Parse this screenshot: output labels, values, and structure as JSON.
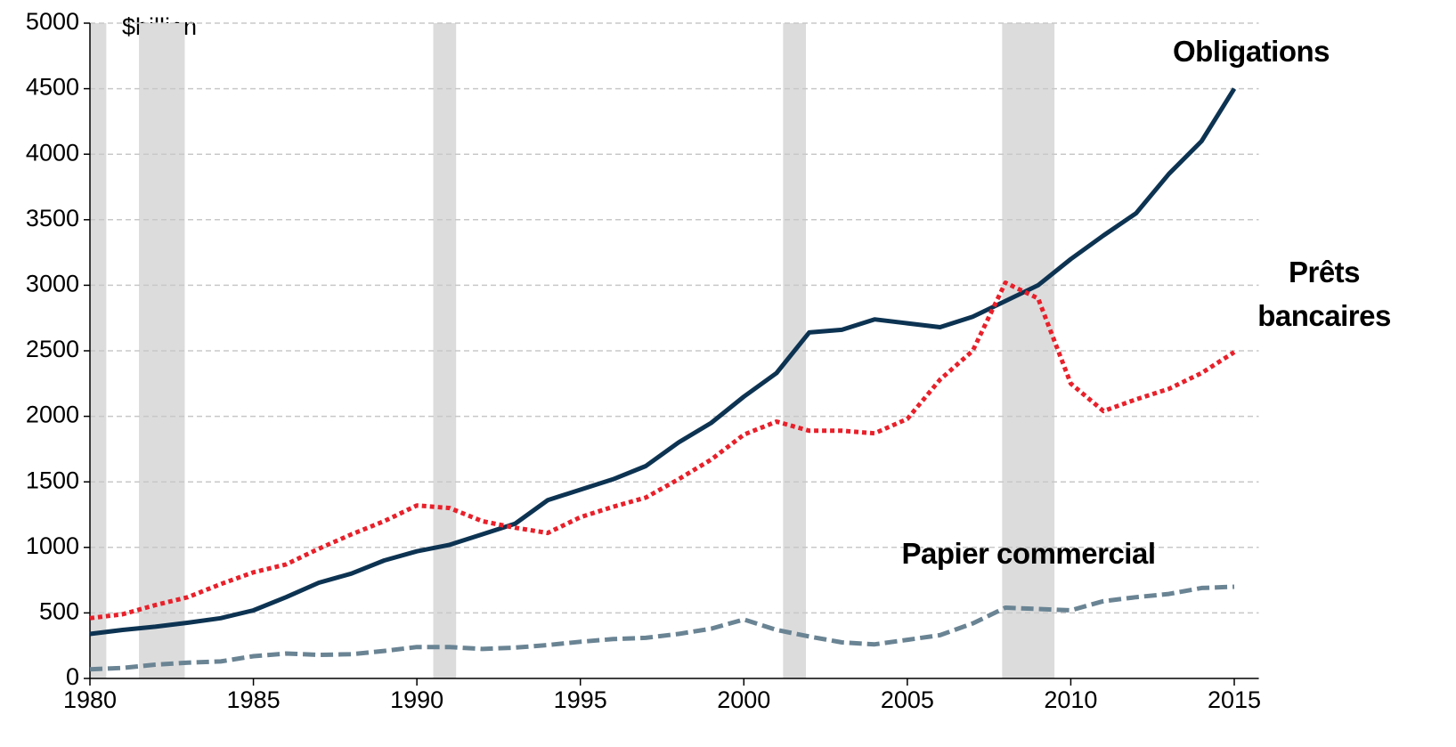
{
  "chart_data": {
    "type": "line",
    "unit_label": "$billion",
    "x": [
      1980,
      1981,
      1982,
      1983,
      1984,
      1985,
      1986,
      1987,
      1988,
      1989,
      1990,
      1991,
      1992,
      1993,
      1994,
      1995,
      1996,
      1997,
      1998,
      1999,
      2000,
      2001,
      2002,
      2003,
      2004,
      2005,
      2006,
      2007,
      2008,
      2009,
      2010,
      2011,
      2012,
      2013,
      2014,
      2015
    ],
    "series": [
      {
        "name": "Obligations",
        "color": "#0d3352",
        "style": "solid",
        "values": [
          340,
          370,
          395,
          425,
          460,
          520,
          620,
          730,
          800,
          900,
          970,
          1020,
          1100,
          1180,
          1360,
          1440,
          1520,
          1620,
          1800,
          1950,
          2150,
          2330,
          2640,
          2660,
          2740,
          2710,
          2680,
          2760,
          2880,
          3000,
          3200,
          3380,
          3550,
          3850,
          4100,
          4500
        ]
      },
      {
        "name": "Prêts bancaires",
        "color": "#e8202a",
        "style": "dotted",
        "values": [
          460,
          490,
          560,
          620,
          720,
          810,
          870,
          990,
          1100,
          1200,
          1320,
          1300,
          1200,
          1150,
          1110,
          1230,
          1310,
          1380,
          1520,
          1670,
          1860,
          1960,
          1890,
          1890,
          1870,
          1980,
          2280,
          2500,
          3020,
          2900,
          2250,
          2040,
          2130,
          2210,
          2330,
          2490
        ]
      },
      {
        "name": "Papier commercial",
        "color": "#6a8494",
        "style": "dashed",
        "values": [
          70,
          80,
          105,
          120,
          130,
          170,
          190,
          180,
          185,
          210,
          240,
          240,
          225,
          235,
          255,
          280,
          300,
          310,
          340,
          380,
          450,
          370,
          320,
          275,
          260,
          295,
          330,
          420,
          540,
          530,
          520,
          590,
          620,
          645,
          690,
          700
        ]
      }
    ],
    "recessions": [
      [
        1980.0,
        1980.5
      ],
      [
        1981.5,
        1982.9
      ],
      [
        1990.5,
        1991.2
      ],
      [
        2001.2,
        2001.9
      ],
      [
        2007.9,
        2009.5
      ]
    ],
    "xlim": [
      1980,
      2015.75
    ],
    "xticks": [
      1980,
      1985,
      1990,
      1995,
      2000,
      2005,
      2010,
      2015
    ],
    "ylim": [
      0,
      5000
    ],
    "yticks": [
      0,
      500,
      1000,
      1500,
      2000,
      2500,
      3000,
      3500,
      4000,
      4500,
      5000
    ],
    "grid": true
  }
}
